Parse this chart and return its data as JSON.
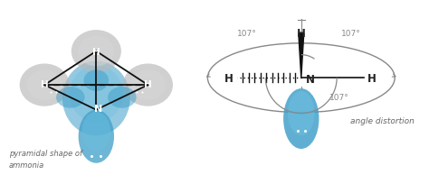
{
  "bg_color": "#ffffff",
  "left_label": "pyramidal shape of\nammonia",
  "right_label": "angle distortion",
  "angle_labels": [
    "107°",
    "107°",
    "107°"
  ],
  "blue_color": "#3d9ec9",
  "blue_light": "#6bbfdf",
  "blue_dark": "#2776a8",
  "gray_color": "#b8b8b8",
  "gray_light": "#d8d8d8",
  "bond_color": "#111111",
  "text_color": "#666666",
  "angle_color": "#888888",
  "white": "#ffffff"
}
